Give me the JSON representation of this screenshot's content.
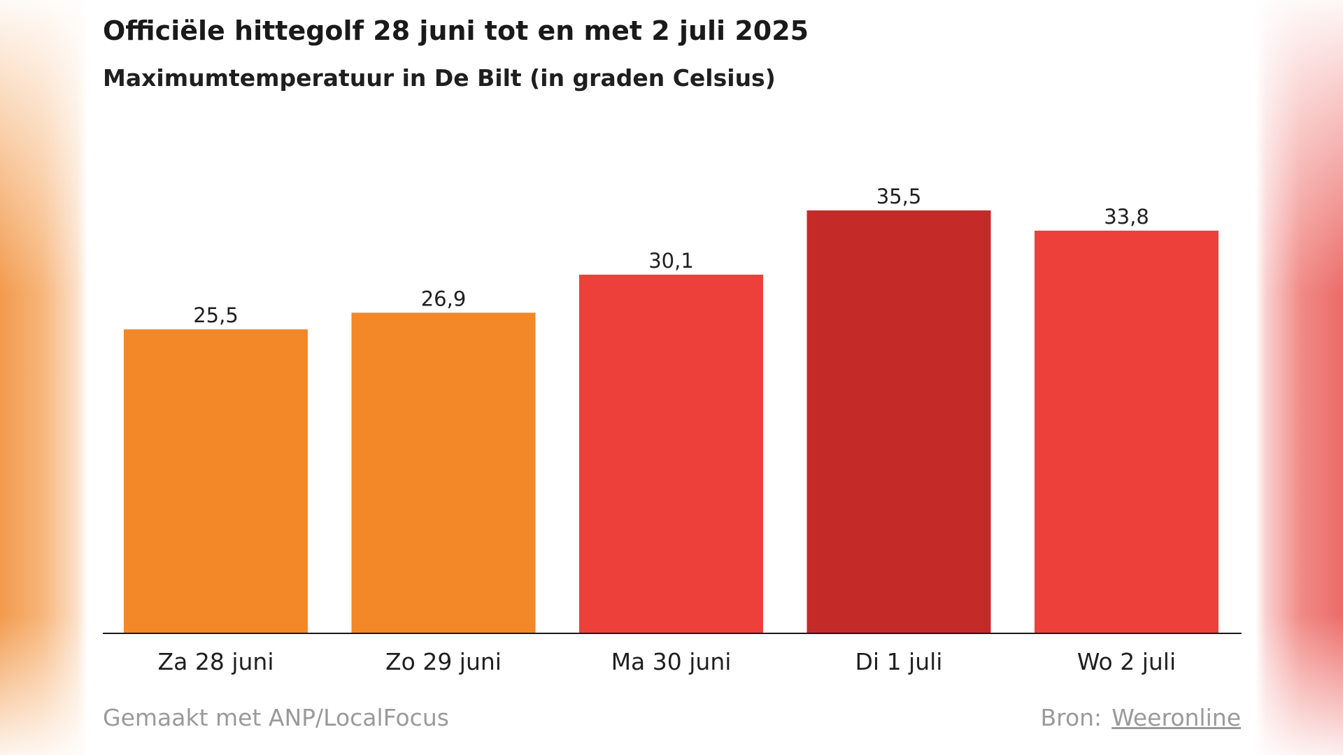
{
  "chart_data": {
    "type": "bar",
    "title": "Officiële hittegolf 28 juni tot en met 2 juli 2025",
    "subtitle": "Maximumtemperatuur in De Bilt (in graden Celsius)",
    "categories": [
      "Za 28 juni",
      "Zo 29 juni",
      "Ma 30 juni",
      "Di 1 juli",
      "Wo 2 juli"
    ],
    "values": [
      25.5,
      26.9,
      30.1,
      35.5,
      33.8
    ],
    "value_labels": [
      "25,5",
      "26,9",
      "30,1",
      "35,5",
      "33,8"
    ],
    "bar_colors": [
      "#f28827",
      "#f28827",
      "#ee403a",
      "#c42b28",
      "#ee403a"
    ],
    "ylim": [
      0,
      40
    ],
    "grid": false,
    "xlabel": "",
    "ylabel": ""
  },
  "footer": {
    "credit": "Gemaakt met ANP/LocalFocus",
    "source_label": "Bron:",
    "source_link": "Weeronline"
  },
  "colors": {
    "axis": "#1a1a1a",
    "text": "#1f1f1f",
    "muted": "#9a9a9a"
  }
}
